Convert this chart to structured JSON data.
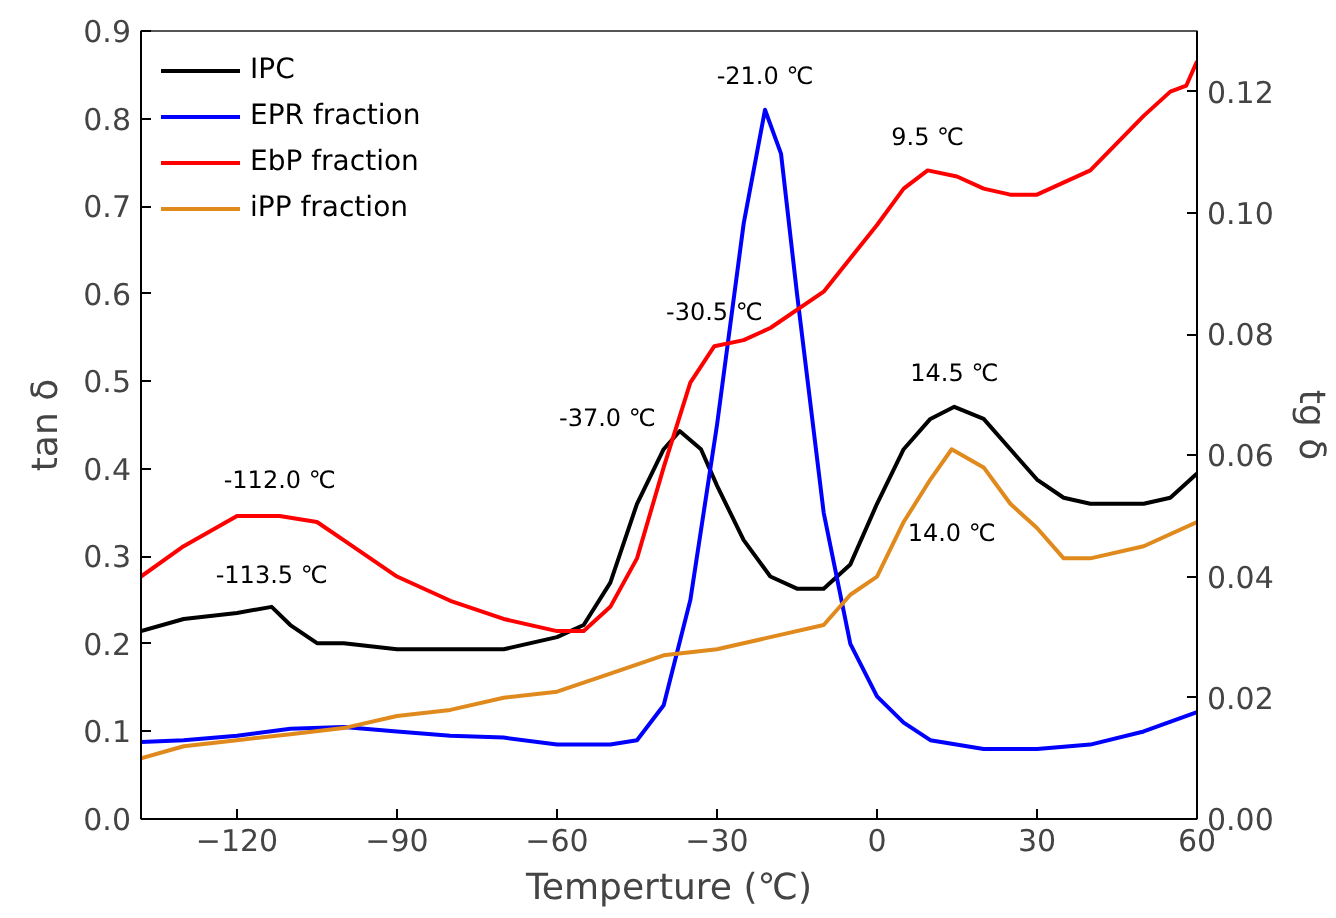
{
  "chart_data": {
    "type": "line",
    "xlabel": "Temperture (℃)",
    "ylabel": "tan δ",
    "y2label": "tg δ",
    "xlim": [
      -138,
      60
    ],
    "xticks": [
      -120,
      -90,
      -60,
      -30,
      0,
      30,
      60
    ],
    "ylim": [
      0,
      0.9
    ],
    "yticks": [
      {
        "value": 0,
        "label": "0.0"
      },
      0.1,
      0.2,
      0.3,
      0.4,
      0.5,
      0.6,
      0.7,
      0.8,
      0.9
    ],
    "y2lim": [
      0,
      0.13
    ],
    "y2ticks": [
      {
        "value": 0,
        "label": "0.00"
      },
      0.02,
      0.04,
      0.06,
      0.08,
      {
        "value": 0.1,
        "label": "0.10"
      },
      0.12
    ],
    "legend": "top left",
    "grid": false,
    "series": [
      {
        "name": "IPC",
        "color": "#000000",
        "axis": "y2",
        "x": [
          -138,
          -130,
          -120,
          -113.5,
          -110,
          -105,
          -100,
          -90,
          -80,
          -70,
          -60,
          -55,
          -50,
          -45,
          -40,
          -37,
          -33,
          -30,
          -25,
          -20,
          -15,
          -10,
          -5,
          0,
          5,
          10,
          14.5,
          20,
          25,
          30,
          35,
          40,
          50,
          55,
          60
        ],
        "values": [
          0.031,
          0.033,
          0.034,
          0.035,
          0.032,
          0.029,
          0.029,
          0.028,
          0.028,
          0.028,
          0.03,
          0.032,
          0.039,
          0.052,
          0.061,
          0.064,
          0.061,
          0.055,
          0.046,
          0.04,
          0.038,
          0.038,
          0.042,
          0.052,
          0.061,
          0.066,
          0.068,
          0.066,
          0.061,
          0.056,
          0.053,
          0.052,
          0.052,
          0.053,
          0.057
        ]
      },
      {
        "name": "EPR fraction",
        "color": "#0000ff",
        "x": [
          -138,
          -130,
          -120,
          -110,
          -100,
          -90,
          -80,
          -70,
          -60,
          -50,
          -45,
          -40,
          -35,
          -30,
          -25,
          -21,
          -18,
          -15,
          -10,
          -5,
          0,
          5,
          10,
          20,
          30,
          40,
          50,
          60
        ],
        "values": [
          0.088,
          0.09,
          0.095,
          0.103,
          0.105,
          0.1,
          0.095,
          0.093,
          0.085,
          0.085,
          0.09,
          0.13,
          0.25,
          0.45,
          0.68,
          0.81,
          0.76,
          0.6,
          0.35,
          0.2,
          0.14,
          0.11,
          0.09,
          0.08,
          0.08,
          0.085,
          0.1,
          0.122
        ]
      },
      {
        "name": "EbP fraction",
        "color": "#ff0000",
        "axis": "y2",
        "x": [
          -138,
          -130,
          -120,
          -112,
          -105,
          -100,
          -90,
          -80,
          -70,
          -60,
          -55,
          -50,
          -45,
          -40,
          -35,
          -30.5,
          -25,
          -20,
          -10,
          0,
          5,
          9.5,
          15,
          20,
          25,
          30,
          40,
          50,
          55,
          58,
          60
        ],
        "values": [
          0.04,
          0.045,
          0.05,
          0.05,
          0.049,
          0.046,
          0.04,
          0.036,
          0.033,
          0.031,
          0.031,
          0.035,
          0.043,
          0.058,
          0.072,
          0.078,
          0.079,
          0.081,
          0.087,
          0.098,
          0.104,
          0.107,
          0.106,
          0.104,
          0.103,
          0.103,
          0.107,
          0.116,
          0.12,
          0.121,
          0.125
        ]
      },
      {
        "name": "iPP fraction",
        "color": "#e08a1e",
        "axis": "y2",
        "x": [
          -138,
          -130,
          -120,
          -110,
          -100,
          -90,
          -80,
          -70,
          -60,
          -50,
          -40,
          -30,
          -20,
          -10,
          -5,
          0,
          5,
          10,
          14,
          20,
          25,
          30,
          35,
          40,
          50,
          60
        ],
        "values": [
          0.01,
          0.012,
          0.013,
          0.014,
          0.015,
          0.017,
          0.018,
          0.02,
          0.021,
          0.024,
          0.027,
          0.028,
          0.03,
          0.032,
          0.037,
          0.04,
          0.049,
          0.056,
          0.061,
          0.058,
          0.052,
          0.048,
          0.043,
          0.043,
          0.045,
          0.049
        ]
      }
    ],
    "annotations": [
      {
        "text": "-112.0 ℃",
        "x": -112,
        "y": 0.348
      },
      {
        "text": "-113.5 ℃",
        "x": -113.5,
        "y": 0.24
      },
      {
        "text": "-37.0 ℃",
        "x": -37,
        "y": 0.44
      },
      {
        "text": "-30.5 ℃",
        "x": -30.5,
        "y": 0.54
      },
      {
        "text": "-21.0 ℃",
        "x": -21,
        "y": 0.81
      },
      {
        "text": "9.5 ℃",
        "x": 9.5,
        "y": 0.74
      },
      {
        "text": "14.5 ℃",
        "x": 14.5,
        "y": 0.47
      },
      {
        "text": "14.0 ℃",
        "x": 14,
        "y": 0.42
      }
    ]
  }
}
